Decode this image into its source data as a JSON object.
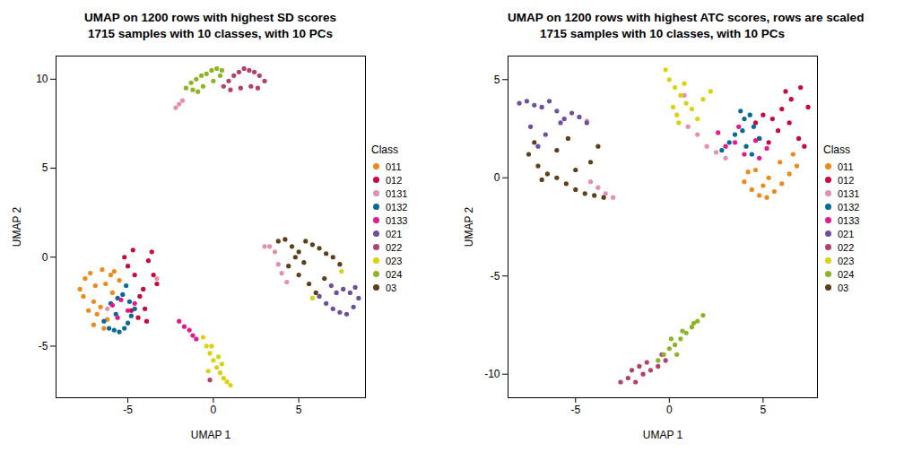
{
  "chart_data": [
    {
      "type": "scatter",
      "title": "UMAP on 1200 rows with highest SD scores",
      "subtitle": "1715 samples with 10 classes, with 10 PCs",
      "x_label": "UMAP 1",
      "y_label": "UMAP 2",
      "legend": "right",
      "legend_title": "Class",
      "marker": "circle",
      "xlim": [
        -9.2,
        8.9
      ],
      "ylim": [
        -7.9,
        11.3
      ],
      "xticks": [
        -5,
        0,
        5
      ],
      "yticks": [
        -5,
        0,
        5,
        10
      ],
      "series": [
        {
          "name": "011",
          "color": "#EE8A1A",
          "x": [
            -7.8,
            -7.5,
            -7.2,
            -7.0,
            -6.8,
            -6.5,
            -6.3,
            -6.0,
            -7.6,
            -7.3,
            -6.9,
            -6.6,
            -6.2,
            -5.8,
            -5.5,
            -7.0,
            -6.4,
            -5.9
          ],
          "y": [
            -1.8,
            -1.2,
            -0.9,
            -2.5,
            -3.2,
            -0.7,
            -1.5,
            -1.0,
            -2.2,
            -3.0,
            -1.6,
            -2.8,
            -3.5,
            -0.8,
            -1.3,
            -3.8,
            -4.0,
            -2.0
          ]
        },
        {
          "name": "012",
          "color": "#C8093F",
          "x": [
            -5.0,
            -4.6,
            -4.3,
            -4.0,
            -3.8,
            -3.6,
            -4.8,
            -4.4,
            -3.5,
            -3.3,
            -5.2,
            -4.1,
            -3.9,
            -4.7
          ],
          "y": [
            -0.5,
            -1.0,
            -2.2,
            -2.9,
            -0.2,
            0.3,
            -3.0,
            -3.4,
            -1.0,
            -1.5,
            0.0,
            -1.8,
            -3.6,
            0.4
          ]
        },
        {
          "name": "0131",
          "color": "#E48FAE",
          "x": [
            -2.2,
            -2.0,
            -1.8,
            3.0,
            3.3,
            3.6,
            3.8,
            4.0,
            4.3,
            -6.2,
            -3.3
          ],
          "y": [
            8.4,
            8.6,
            8.8,
            0.6,
            0.6,
            0.3,
            -0.4,
            -0.9,
            -1.4,
            -2.9,
            -1.2
          ]
        },
        {
          "name": "0132",
          "color": "#06699C",
          "x": [
            -6.4,
            -6.1,
            -5.8,
            -5.5,
            -5.2,
            -5.0,
            -4.8,
            -4.6,
            -6.0,
            -5.6,
            -5.3,
            -4.9,
            -5.7,
            -5.1
          ],
          "y": [
            -3.6,
            -4.0,
            -4.1,
            -4.2,
            -4.0,
            -3.7,
            -3.3,
            -2.9,
            -2.6,
            -2.3,
            -2.1,
            -2.5,
            -3.2,
            -1.6
          ]
        },
        {
          "name": "0133",
          "color": "#E5198E",
          "x": [
            -5.9,
            -5.4,
            -5.0,
            -4.6,
            -5.6,
            -2.0,
            -1.7,
            -1.4,
            -1.2,
            -1.0
          ],
          "y": [
            -2.7,
            -2.4,
            -3.0,
            -2.6,
            -3.4,
            -3.6,
            -3.9,
            -4.1,
            -4.4,
            -4.6
          ]
        },
        {
          "name": "021",
          "color": "#6D4F9E",
          "x": [
            6.2,
            6.6,
            7.0,
            7.4,
            7.8,
            8.2,
            8.5,
            7.2,
            7.6,
            8.0,
            6.9,
            8.3
          ],
          "y": [
            -2.2,
            -2.6,
            -2.9,
            -3.1,
            -3.2,
            -2.8,
            -2.3,
            -2.0,
            -1.8,
            -2.0,
            -1.6,
            -1.7
          ]
        },
        {
          "name": "022",
          "color": "#B1406F",
          "x": [
            0.6,
            0.9,
            1.2,
            1.5,
            1.8,
            2.1,
            2.4,
            2.7,
            3.0,
            1.0,
            1.6,
            2.2,
            2.6,
            -0.2
          ],
          "y": [
            9.6,
            9.9,
            10.2,
            10.4,
            10.6,
            10.5,
            10.4,
            10.2,
            9.9,
            9.4,
            9.5,
            9.6,
            9.5,
            -6.9
          ]
        },
        {
          "name": "023",
          "color": "#D9D20E",
          "x": [
            -0.6,
            -0.4,
            -0.2,
            0.0,
            0.2,
            0.4,
            0.6,
            0.8,
            1.0,
            -0.1,
            0.3,
            0.5,
            -0.3,
            5.8,
            7.5
          ],
          "y": [
            -4.5,
            -5.0,
            -5.4,
            -5.8,
            -6.2,
            -6.5,
            -6.8,
            -7.0,
            -7.2,
            -5.0,
            -5.6,
            -6.0,
            -6.4,
            -2.3,
            -0.8
          ]
        },
        {
          "name": "024",
          "color": "#8DB424",
          "x": [
            -1.6,
            -1.3,
            -1.0,
            -0.7,
            -0.4,
            -0.1,
            0.2,
            0.5,
            -1.2,
            -0.6,
            0.0,
            0.4,
            -0.9
          ],
          "y": [
            9.5,
            9.8,
            10.0,
            10.2,
            10.3,
            10.5,
            10.6,
            10.5,
            9.4,
            9.6,
            9.9,
            10.2,
            9.3
          ]
        },
        {
          "name": "03",
          "color": "#5C4019",
          "x": [
            3.8,
            4.2,
            4.6,
            5.0,
            5.4,
            5.8,
            6.2,
            6.6,
            7.0,
            7.4,
            4.4,
            5.0,
            5.6,
            6.0,
            6.5,
            4.8,
            5.3
          ],
          "y": [
            0.9,
            1.0,
            0.6,
            0.3,
            0.9,
            0.7,
            0.5,
            0.2,
            0.0,
            -0.4,
            -0.5,
            -1.0,
            -1.5,
            -2.0,
            -1.2,
            0.0,
            -0.3
          ]
        }
      ]
    },
    {
      "type": "scatter",
      "title": "UMAP on 1200 rows with highest ATC scores, rows are scaled",
      "subtitle": "1715 samples with 10 classes, with 10 PCs",
      "x_label": "UMAP 1",
      "y_label": "UMAP 2",
      "legend": "right",
      "legend_title": "Class",
      "marker": "circle",
      "xlim": [
        -8.6,
        7.9
      ],
      "ylim": [
        -11.2,
        6.2
      ],
      "xticks": [
        -5,
        0,
        5
      ],
      "yticks": [
        -10,
        -5,
        0,
        5
      ],
      "series": [
        {
          "name": "011",
          "color": "#EE8A1A",
          "x": [
            4.0,
            4.4,
            4.8,
            5.2,
            5.6,
            6.0,
            6.4,
            6.8,
            4.6,
            5.3,
            5.9,
            6.6,
            4.2,
            5.0
          ],
          "y": [
            -0.2,
            -0.6,
            -0.9,
            -1.0,
            -0.7,
            -0.3,
            0.2,
            0.6,
            0.4,
            0.0,
            0.8,
            1.2,
            0.3,
            -0.4
          ]
        },
        {
          "name": "012",
          "color": "#C8093F",
          "x": [
            4.6,
            5.0,
            5.5,
            6.0,
            6.5,
            7.0,
            7.4,
            5.8,
            6.4,
            6.9,
            4.8,
            7.2,
            6.2,
            5.3
          ],
          "y": [
            2.8,
            3.2,
            3.0,
            3.5,
            4.0,
            4.6,
            3.6,
            2.4,
            2.8,
            2.0,
            2.0,
            1.6,
            4.4,
            1.8
          ]
        },
        {
          "name": "0131",
          "color": "#E48FAE",
          "x": [
            -3.0,
            -3.4,
            -3.8,
            -4.2,
            1.0,
            1.5,
            2.0,
            2.5,
            3.0,
            -4.4,
            0.8
          ],
          "y": [
            -1.0,
            -0.8,
            -0.5,
            -0.2,
            2.6,
            2.2,
            1.6,
            1.3,
            1.0,
            2.9,
            4.2
          ]
        },
        {
          "name": "0132",
          "color": "#06699C",
          "x": [
            3.8,
            4.0,
            4.3,
            4.5,
            3.5,
            3.2,
            4.1,
            4.8,
            2.8,
            3.9,
            4.4
          ],
          "y": [
            3.4,
            3.0,
            3.2,
            2.6,
            2.2,
            1.8,
            1.6,
            2.0,
            1.4,
            2.4,
            1.2
          ]
        },
        {
          "name": "0133",
          "color": "#E5198E",
          "x": [
            3.0,
            3.5,
            4.0,
            4.6,
            5.2,
            2.6,
            3.7,
            4.8
          ],
          "y": [
            1.6,
            1.8,
            1.2,
            1.9,
            1.5,
            2.3,
            2.6,
            1.0
          ]
        },
        {
          "name": "021",
          "color": "#6D4F9E",
          "x": [
            -8.0,
            -7.6,
            -7.2,
            -6.8,
            -6.4,
            -6.0,
            -5.6,
            -5.2,
            -4.8,
            -4.4,
            -7.4,
            -6.6,
            -7.0,
            -5.8
          ],
          "y": [
            3.8,
            3.9,
            3.7,
            3.6,
            3.9,
            3.4,
            3.0,
            3.3,
            3.1,
            2.8,
            2.6,
            2.2,
            1.6,
            2.8
          ]
        },
        {
          "name": "022",
          "color": "#B1406F",
          "x": [
            -2.6,
            -2.2,
            -1.8,
            -1.4,
            -1.0,
            -0.6,
            -0.2,
            -2.0,
            -1.2,
            -0.4,
            -1.6
          ],
          "y": [
            -10.4,
            -10.2,
            -10.4,
            -10.0,
            -9.8,
            -9.6,
            -9.3,
            -9.8,
            -9.4,
            -9.0,
            -9.6
          ]
        },
        {
          "name": "023",
          "color": "#D9D20E",
          "x": [
            -0.2,
            0.0,
            0.3,
            0.6,
            0.9,
            1.2,
            1.5,
            0.2,
            0.5,
            0.8,
            0.4,
            2.2,
            1.8
          ],
          "y": [
            5.5,
            5.0,
            4.6,
            4.2,
            3.8,
            3.5,
            3.0,
            3.6,
            2.8,
            4.8,
            3.2,
            4.4,
            4.0
          ]
        },
        {
          "name": "024",
          "color": "#8DB424",
          "x": [
            -0.6,
            -0.3,
            0.0,
            0.3,
            0.6,
            0.9,
            1.2,
            1.5,
            1.8,
            0.1,
            0.7,
            1.3,
            0.4
          ],
          "y": [
            -9.3,
            -9.0,
            -8.7,
            -8.5,
            -8.2,
            -7.9,
            -7.6,
            -7.3,
            -7.0,
            -8.2,
            -7.8,
            -7.4,
            -9.0
          ]
        },
        {
          "name": "03",
          "color": "#5C4019",
          "x": [
            -7.5,
            -7.0,
            -6.5,
            -6.0,
            -5.5,
            -5.0,
            -4.5,
            -4.0,
            -3.5,
            -7.2,
            -6.8,
            -5.0,
            -4.2,
            -3.8,
            -6.0,
            -5.4
          ],
          "y": [
            1.2,
            0.6,
            0.2,
            0.0,
            -0.3,
            -0.6,
            -0.8,
            -0.9,
            -1.0,
            1.8,
            -0.1,
            0.4,
            0.8,
            1.6,
            1.4,
            2.0
          ]
        }
      ]
    }
  ]
}
